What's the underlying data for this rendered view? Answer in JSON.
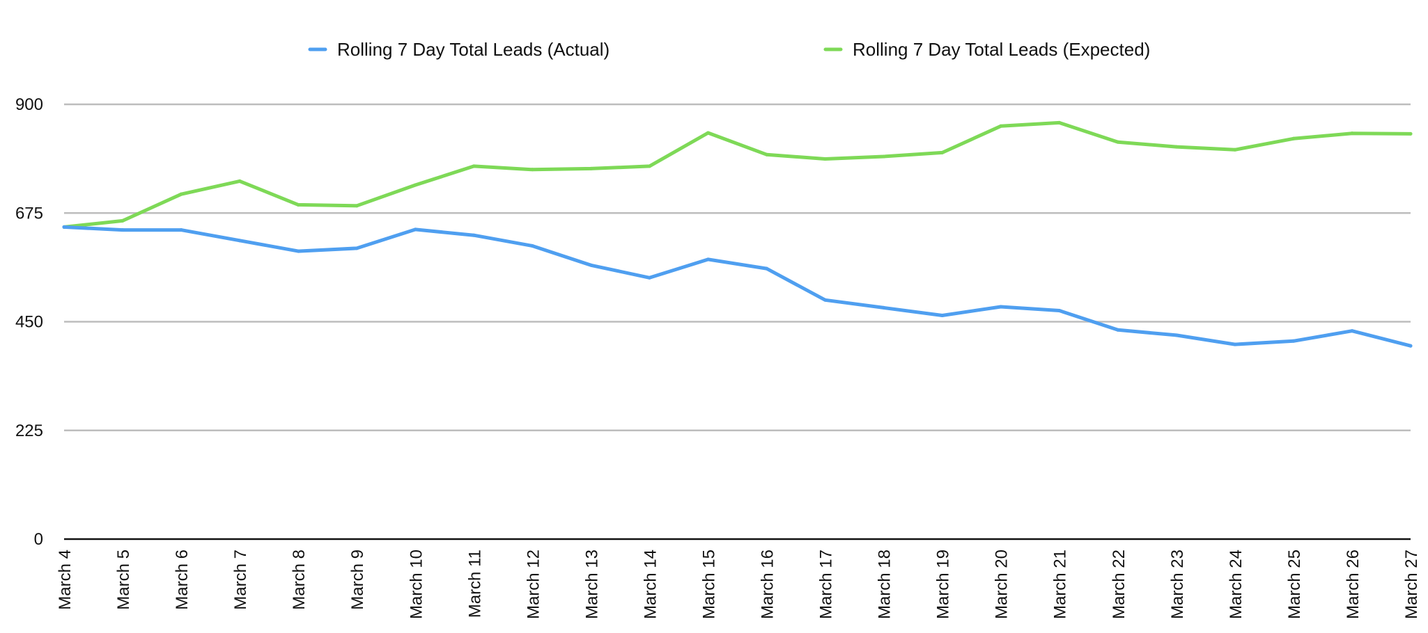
{
  "chart_data": {
    "type": "line",
    "title": "",
    "xlabel": "",
    "ylabel": "",
    "ylim": [
      0,
      900
    ],
    "yticks": [
      0,
      225,
      450,
      675,
      900
    ],
    "grid": true,
    "legend_position": "top",
    "categories": [
      "March 4",
      "March 5",
      "March 6",
      "March 7",
      "March 8",
      "March 9",
      "March 10",
      "March 11",
      "March 12",
      "March 13",
      "March 14",
      "March 15",
      "March 16",
      "March 17",
      "March 18",
      "March 19",
      "March 20",
      "March 21",
      "March 22",
      "March 23",
      "March 24",
      "March 25",
      "March 26",
      "March 27"
    ],
    "series": [
      {
        "name": "Rolling 7 Day Total Leads (Actual)",
        "color": "#4f9ff0",
        "values": [
          646,
          640,
          640,
          618,
          596,
          602,
          641,
          629,
          607,
          567,
          541,
          579,
          560,
          495,
          479,
          463,
          481,
          473,
          433,
          422,
          403,
          410,
          431,
          400
        ]
      },
      {
        "name": "Rolling 7 Day Total Leads (Expected)",
        "color": "#7ed957",
        "values": [
          646,
          659,
          714,
          741,
          692,
          690,
          733,
          772,
          765,
          767,
          772,
          841,
          796,
          787,
          792,
          800,
          855,
          862,
          822,
          812,
          806,
          829,
          840,
          839
        ]
      }
    ]
  }
}
